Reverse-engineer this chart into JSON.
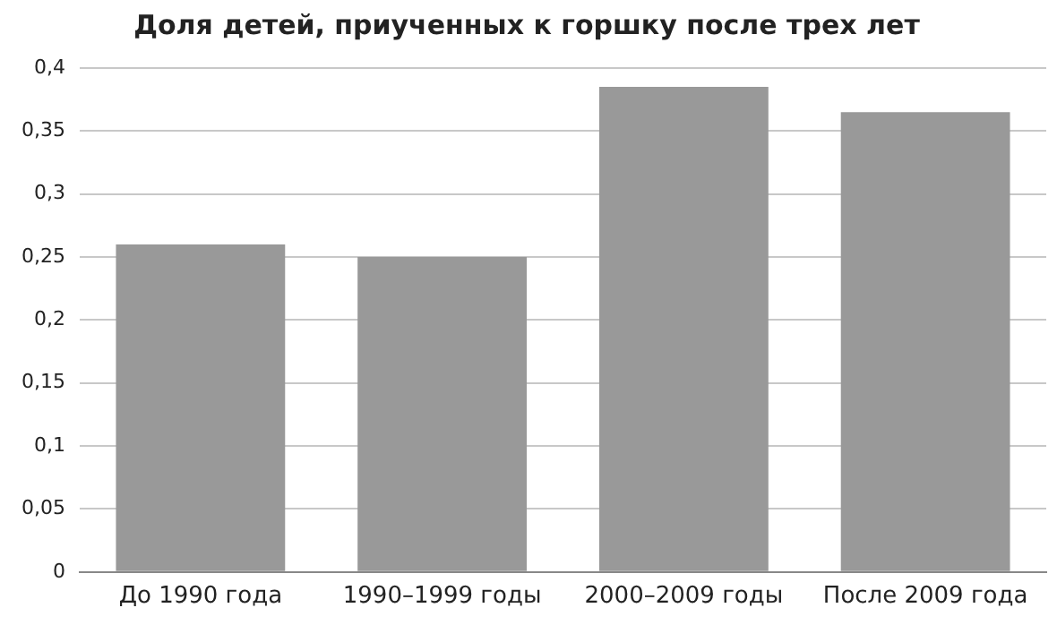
{
  "chart_data": {
    "type": "bar",
    "title": "Доля детей, приученных к горшку после трех лет",
    "categories": [
      "До 1990 года",
      "1990–1999 годы",
      "2000–2009 годы",
      "После 2009 года"
    ],
    "values": [
      0.26,
      0.25,
      0.385,
      0.365
    ],
    "color": "#999999",
    "ylim": [
      0,
      0.4
    ],
    "yticks": [
      {
        "value": 0,
        "label": "0"
      },
      {
        "value": 0.05,
        "label": "0,05"
      },
      {
        "value": 0.1,
        "label": "0,1"
      },
      {
        "value": 0.15,
        "label": "0,15"
      },
      {
        "value": 0.2,
        "label": "0,2"
      },
      {
        "value": 0.25,
        "label": "0,25"
      },
      {
        "value": 0.3,
        "label": "0,3"
      },
      {
        "value": 0.35,
        "label": "0,35"
      },
      {
        "value": 0.4,
        "label": "0,4"
      }
    ],
    "grid": "y",
    "legend": false
  }
}
